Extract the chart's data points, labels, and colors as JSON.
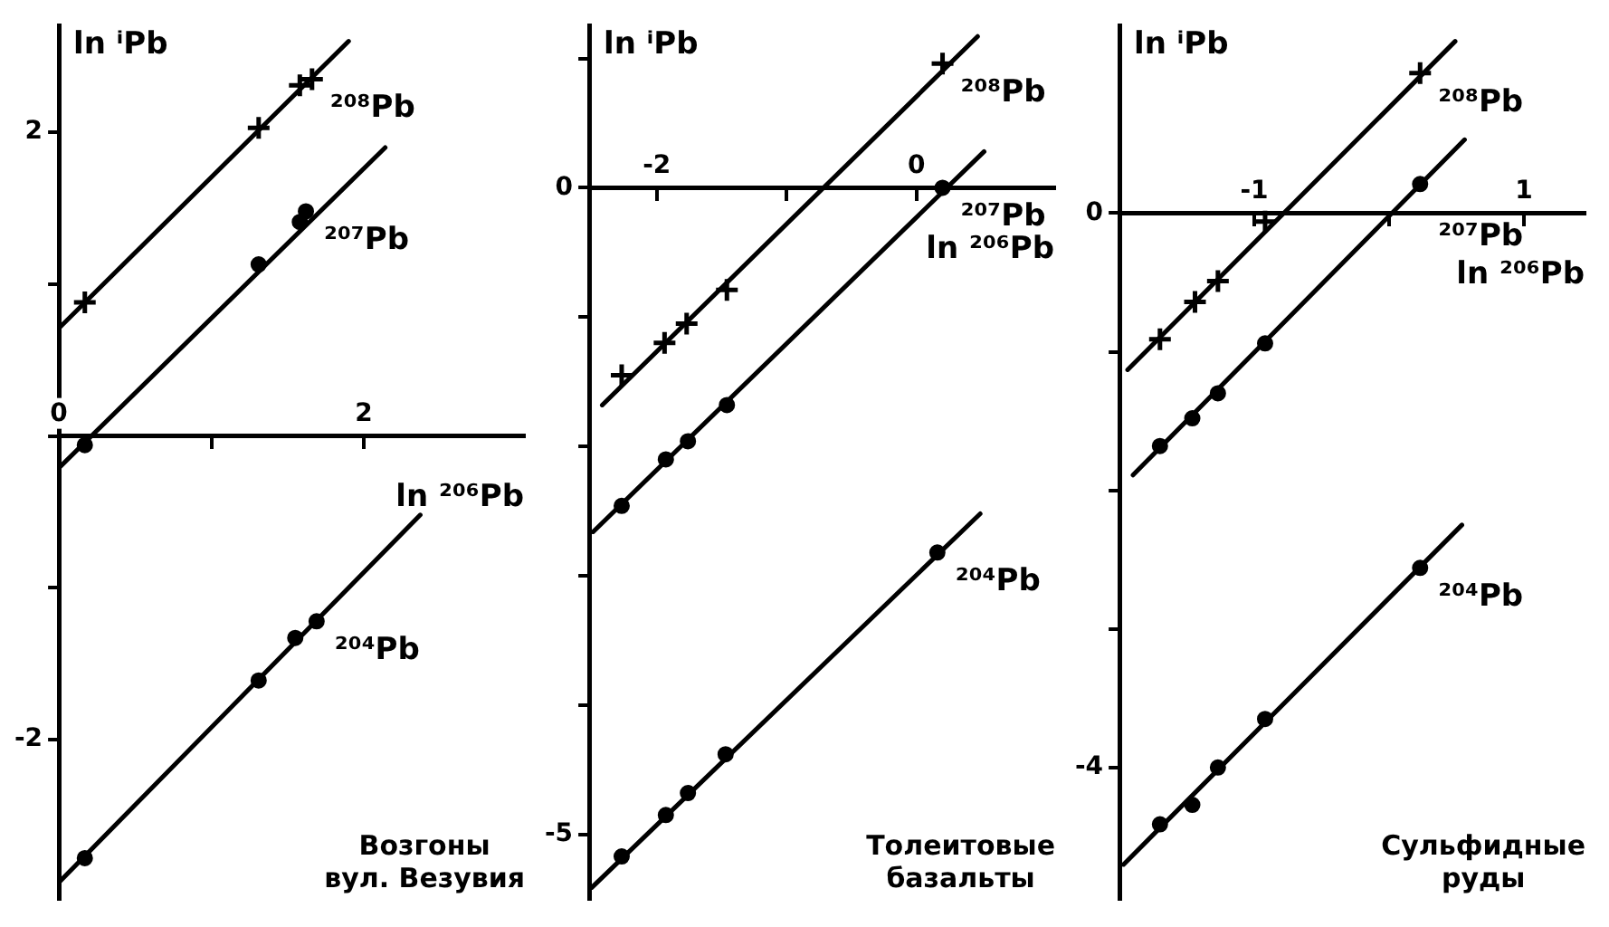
{
  "chart_data": [
    {
      "type": "scatter",
      "xlabel": "ln ²⁰⁶Pb",
      "ylabel": "ln ⁱPb",
      "xlim": [
        0,
        3.05
      ],
      "ylim": [
        -3.05,
        2.7
      ],
      "xticks": [
        0,
        {
          "value": 1,
          "label": null
        },
        2
      ],
      "yticks": [
        -2,
        {
          "value": -1,
          "label": null
        },
        {
          "value": 0,
          "label": null
        },
        {
          "value": 1,
          "label": null
        },
        2
      ],
      "grid": false,
      "line_style": "solid",
      "annotations": [
        "Возгоны\nвул. Везувия"
      ],
      "series": [
        {
          "name": "²⁰⁸Pb",
          "type": "scatter",
          "marker": "cross",
          "color": "#000000",
          "x": [
            0.17,
            1.31,
            1.58,
            1.66
          ],
          "values": [
            0.88,
            2.03,
            2.31,
            2.35
          ]
        },
        {
          "name": "²⁰⁷Pb",
          "type": "scatter",
          "marker": "circle",
          "color": "#000000",
          "x": [
            0.17,
            1.31,
            1.58,
            1.62
          ],
          "values": [
            -0.06,
            1.13,
            1.41,
            1.48
          ]
        },
        {
          "name": "²⁰⁴Pb",
          "type": "scatter",
          "marker": "circle",
          "color": "#000000",
          "x": [
            0.17,
            1.31,
            1.55,
            1.69
          ],
          "values": [
            -2.78,
            -1.61,
            -1.33,
            -1.22
          ]
        },
        {
          "type": "line",
          "marker": "none",
          "color": "#000000",
          "x": [
            0,
            1.9
          ],
          "values": [
            0.71,
            2.6
          ]
        },
        {
          "type": "line",
          "marker": "none",
          "color": "#000000",
          "x": [
            0,
            2.14
          ],
          "values": [
            -0.21,
            1.9
          ]
        },
        {
          "type": "line",
          "marker": "none",
          "color": "#000000",
          "x": [
            0,
            2.37
          ],
          "values": [
            -2.94,
            -0.52
          ]
        }
      ]
    },
    {
      "type": "scatter",
      "xlabel": "ln ²⁰⁶Pb",
      "ylabel": "ln ⁱPb",
      "xlim": [
        -2.52,
        1.06
      ],
      "ylim": [
        -5.5,
        1.25
      ],
      "xticks": [
        -2,
        {
          "value": -1,
          "label": null
        },
        0
      ],
      "yticks": [
        -5,
        {
          "value": -4,
          "label": null
        },
        {
          "value": -3,
          "label": null
        },
        {
          "value": -2,
          "label": null
        },
        {
          "value": -1,
          "label": null
        },
        0,
        {
          "value": 1,
          "label": null
        }
      ],
      "grid": false,
      "line_style": "solid",
      "annotations": [
        "Толеитовые\nбазальты"
      ],
      "series": [
        {
          "name": "²⁰⁸Pb",
          "type": "scatter",
          "marker": "cross",
          "color": "#000000",
          "x": [
            -2.27,
            -1.94,
            -1.77,
            -1.46,
            0.2
          ],
          "values": [
            -1.45,
            -1.2,
            -1.05,
            -0.79,
            0.96
          ]
        },
        {
          "name": "²⁰⁷Pb",
          "type": "scatter",
          "marker": "circle",
          "color": "#000000",
          "x": [
            -2.27,
            -1.93,
            -1.76,
            -1.46,
            0.2
          ],
          "values": [
            -2.46,
            -2.1,
            -1.96,
            -1.68,
            0.0
          ]
        },
        {
          "name": "²⁰⁴Pb",
          "type": "scatter",
          "marker": "circle",
          "color": "#000000",
          "x": [
            -2.27,
            -1.93,
            -1.76,
            -1.47,
            0.16
          ],
          "values": [
            -5.17,
            -4.85,
            -4.68,
            -4.38,
            -2.82
          ]
        },
        {
          "type": "line",
          "marker": "none",
          "color": "#000000",
          "x": [
            -2.42,
            0.47
          ],
          "values": [
            -1.68,
            1.17
          ]
        },
        {
          "type": "line",
          "marker": "none",
          "color": "#000000",
          "x": [
            -2.49,
            0.52
          ],
          "values": [
            -2.66,
            0.28
          ]
        },
        {
          "type": "line",
          "marker": "none",
          "color": "#000000",
          "x": [
            -2.5,
            0.49
          ],
          "values": [
            -5.41,
            -2.52
          ]
        }
      ]
    },
    {
      "type": "scatter",
      "xlabel": "ln ²⁰⁶Pb",
      "ylabel": "ln ⁱPb",
      "xlim": [
        -2,
        1.45
      ],
      "ylim": [
        -4.95,
        1.35
      ],
      "xticks": [
        -1,
        {
          "value": 0,
          "label": null
        },
        1
      ],
      "yticks": [
        -4,
        {
          "value": -3,
          "label": null
        },
        {
          "value": -2,
          "label": null
        },
        {
          "value": -1,
          "label": null
        },
        0
      ],
      "grid": false,
      "line_style": "solid",
      "annotations": [
        "Сульфидные\nруды"
      ],
      "series": [
        {
          "name": "²⁰⁸Pb",
          "type": "scatter",
          "marker": "cross",
          "color": "#000000",
          "x": [
            -1.7,
            -1.44,
            -1.27,
            -0.92,
            0.23
          ],
          "values": [
            -0.91,
            -0.64,
            -0.49,
            -0.06,
            1.01
          ]
        },
        {
          "name": "²⁰⁷Pb",
          "type": "scatter",
          "marker": "circle",
          "color": "#000000",
          "x": [
            -1.7,
            -1.46,
            -1.27,
            -0.92,
            0.23
          ],
          "values": [
            -1.68,
            -1.48,
            -1.3,
            -0.94,
            0.21
          ]
        },
        {
          "name": "²⁰⁴Pb",
          "type": "scatter",
          "marker": "circle",
          "color": "#000000",
          "x": [
            -1.7,
            -1.46,
            -1.27,
            -0.92,
            0.23
          ],
          "values": [
            -4.41,
            -4.27,
            -4.0,
            -3.65,
            -2.56
          ]
        },
        {
          "type": "line",
          "marker": "none",
          "color": "#000000",
          "x": [
            -1.94,
            0.49
          ],
          "values": [
            -1.13,
            1.24
          ]
        },
        {
          "type": "line",
          "marker": "none",
          "color": "#000000",
          "x": [
            -1.9,
            0.56
          ],
          "values": [
            -1.89,
            0.53
          ]
        },
        {
          "type": "line",
          "marker": "none",
          "color": "#000000",
          "x": [
            -1.97,
            0.54
          ],
          "values": [
            -4.7,
            -2.25
          ]
        }
      ]
    }
  ]
}
